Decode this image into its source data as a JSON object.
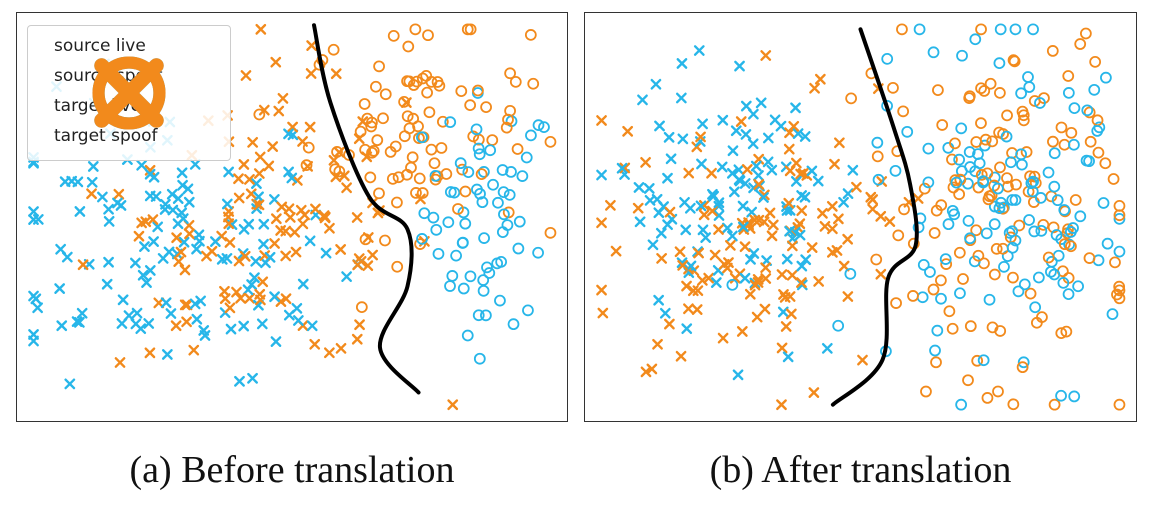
{
  "colors": {
    "source": "#27b6e9",
    "target": "#f28a1c",
    "boundary": "#000000"
  },
  "legend": [
    {
      "label": "source live",
      "marker": "circle",
      "domain": "source"
    },
    {
      "label": "source spoof",
      "marker": "x",
      "domain": "source"
    },
    {
      "label": "target live",
      "marker": "circle",
      "domain": "target"
    },
    {
      "label": "target spoof",
      "marker": "x",
      "domain": "target"
    }
  ],
  "chart_data": [
    {
      "type": "scatter",
      "caption": "(a) Before translation",
      "axes": "off",
      "grid": false,
      "legend_placement": "top-left",
      "xlim": [
        0,
        100
      ],
      "ylim": [
        0,
        100
      ],
      "series": [
        {
          "name": "source live",
          "marker": "circle",
          "color": "#27b6e9",
          "clusters": [
            {
              "center": [
                86,
                52
              ],
              "spread": [
                6,
                14
              ],
              "count": 55
            },
            {
              "center": [
                82,
                30
              ],
              "spread": [
                4,
                6
              ],
              "count": 8
            }
          ]
        },
        {
          "name": "source spoof",
          "marker": "x",
          "color": "#27b6e9",
          "clusters": [
            {
              "center": [
                26,
                45
              ],
              "spread": [
                16,
                17
              ],
              "count": 125
            },
            {
              "center": [
                48,
                22
              ],
              "spread": [
                5,
                5
              ],
              "count": 8
            }
          ]
        },
        {
          "name": "target live",
          "marker": "circle",
          "color": "#f28a1c",
          "clusters": [
            {
              "center": [
                73,
                72
              ],
              "spread": [
                10,
                13
              ],
              "count": 95
            }
          ]
        },
        {
          "name": "target spoof",
          "marker": "x",
          "color": "#f28a1c",
          "clusters": [
            {
              "center": [
                50,
                50
              ],
              "spread": [
                13,
                18
              ],
              "count": 95
            },
            {
              "center": [
                30,
                35
              ],
              "spread": [
                12,
                14
              ],
              "count": 25
            }
          ]
        }
      ],
      "boundary": [
        [
          54,
          97
        ],
        [
          57,
          78
        ],
        [
          64,
          55
        ],
        [
          71,
          47
        ],
        [
          71,
          33
        ],
        [
          66,
          18
        ],
        [
          73,
          7
        ]
      ]
    },
    {
      "type": "scatter",
      "caption": "(b) After translation",
      "axes": "off",
      "grid": false,
      "legend_placement": "none",
      "xlim": [
        0,
        100
      ],
      "ylim": [
        0,
        100
      ],
      "series": [
        {
          "name": "source live",
          "marker": "circle",
          "color": "#27b6e9",
          "clusters": [
            {
              "center": [
                75,
                52
              ],
              "spread": [
                12,
                22
              ],
              "count": 125
            }
          ]
        },
        {
          "name": "source spoof",
          "marker": "x",
          "color": "#27b6e9",
          "clusters": [
            {
              "center": [
                28,
                55
              ],
              "spread": [
                11,
                15
              ],
              "count": 110
            }
          ]
        },
        {
          "name": "target live",
          "marker": "circle",
          "color": "#f28a1c",
          "clusters": [
            {
              "center": [
                75,
                50
              ],
              "spread": [
                12,
                22
              ],
              "count": 135
            }
          ]
        },
        {
          "name": "target spoof",
          "marker": "x",
          "color": "#f28a1c",
          "clusters": [
            {
              "center": [
                32,
                45
              ],
              "spread": [
                13,
                17
              ],
              "count": 125
            }
          ]
        }
      ],
      "boundary": [
        [
          50,
          96
        ],
        [
          56,
          72
        ],
        [
          59,
          58
        ],
        [
          60,
          43
        ],
        [
          55,
          35
        ],
        [
          54,
          15
        ],
        [
          45,
          4
        ]
      ]
    }
  ]
}
